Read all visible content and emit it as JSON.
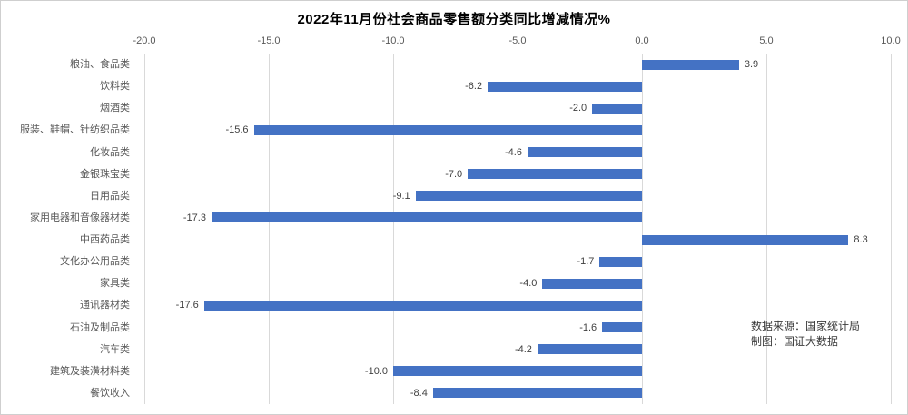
{
  "title": "2022年11月份社会商品零售额分类同比增减情况%",
  "source": {
    "line1": "数据来源：国家统计局",
    "line2": "制图：国证大数据"
  },
  "colors": {
    "bar": "#4472C4",
    "gridline": "#D9D9D9",
    "axis_text": "#595959",
    "value_label": "#404040",
    "title_text": "#000000",
    "border": "#CFCFCF"
  },
  "chart_data": {
    "type": "bar",
    "orientation": "horizontal",
    "title": "2022年11月份社会商品零售额分类同比增减情况%",
    "categories": [
      "粮油、食品类",
      "饮料类",
      "烟酒类",
      "服装、鞋帽、针纺织品类",
      "化妆品类",
      "金银珠宝类",
      "日用品类",
      "家用电器和音像器材类",
      "中西药品类",
      "文化办公用品类",
      "家具类",
      "通讯器材类",
      "石油及制品类",
      "汽车类",
      "建筑及装潢材料类",
      "餐饮收入"
    ],
    "values": [
      3.9,
      -6.2,
      -2.0,
      -15.6,
      -4.6,
      -7.0,
      -9.1,
      -17.3,
      8.3,
      -1.7,
      -4.0,
      -17.6,
      -1.6,
      -4.2,
      -10.0,
      -8.4
    ],
    "xlim": [
      -20.0,
      10.0
    ],
    "x_ticks": [
      -20.0,
      -15.0,
      -10.0,
      -5.0,
      0.0,
      5.0,
      10.0
    ],
    "xlabel": "",
    "ylabel": "",
    "grid": true,
    "legend": false,
    "data_labels": true,
    "value_format_decimals": 1
  }
}
